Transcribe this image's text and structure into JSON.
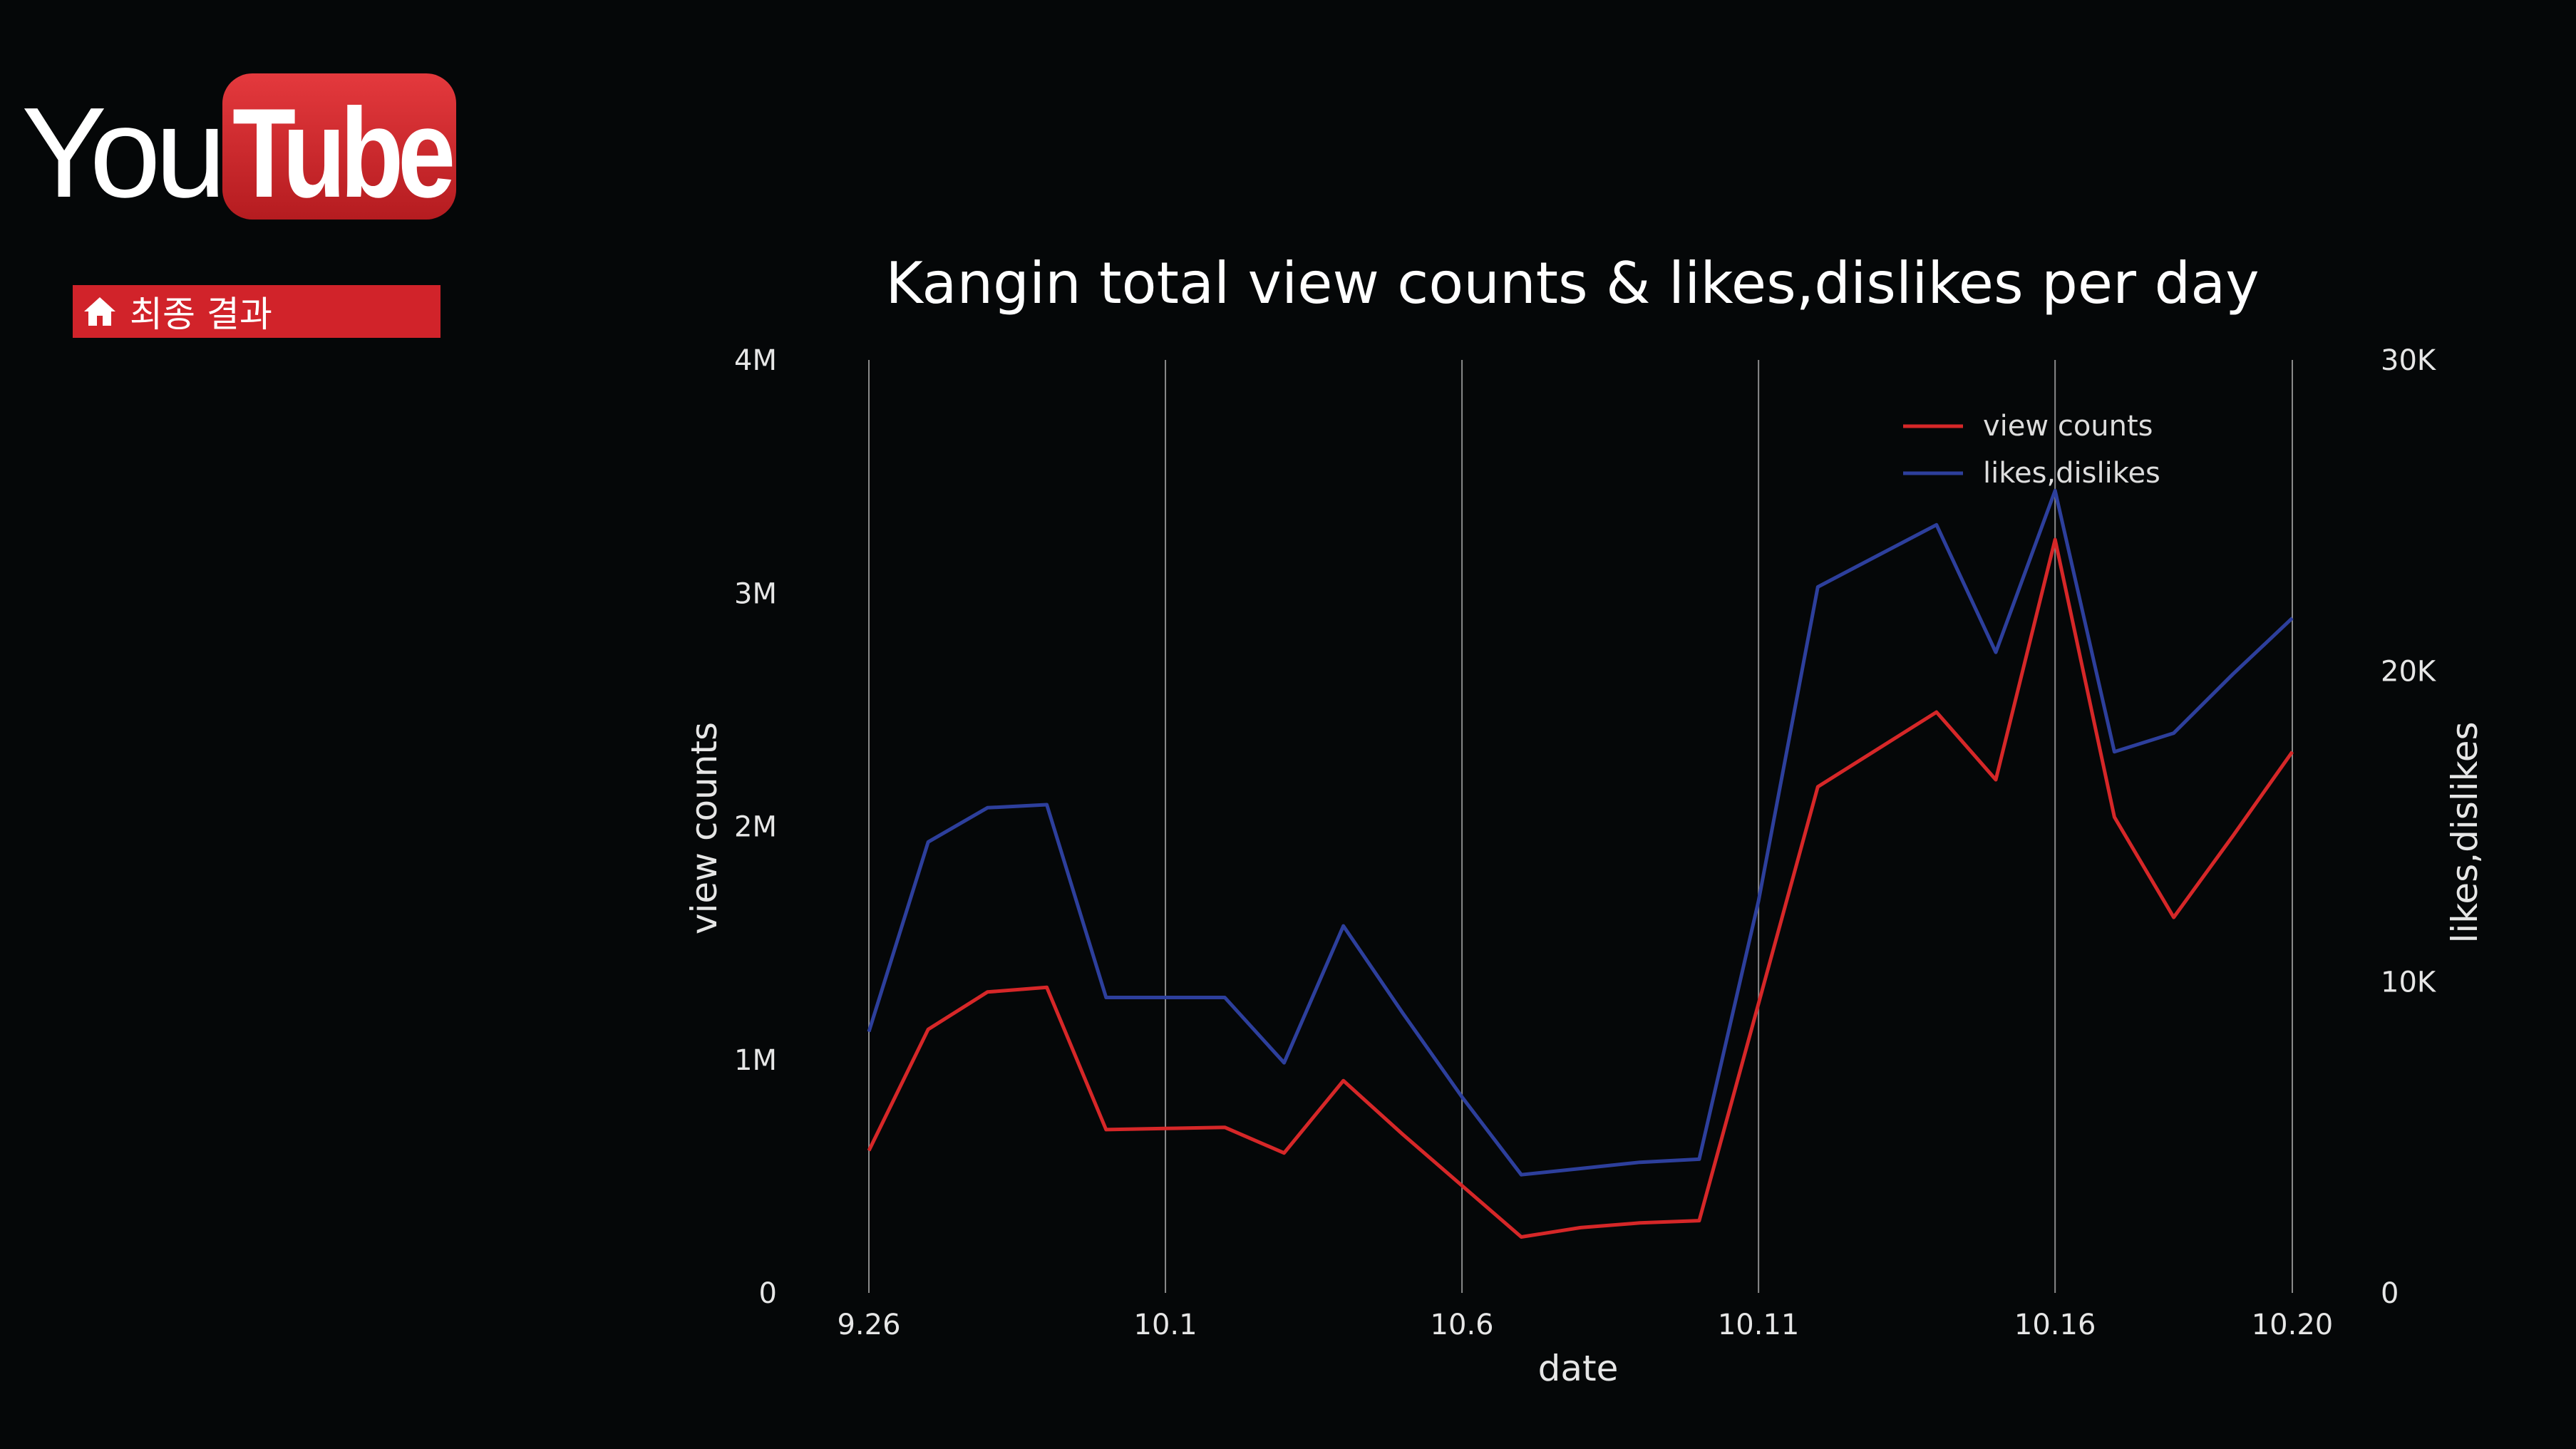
{
  "logo": {
    "you": "You",
    "tube": "Tube"
  },
  "badge": {
    "icon": "home-icon",
    "label": "최종 결과"
  },
  "chart_data": {
    "type": "line",
    "title": "Kangin total view counts & likes,dislikes per day",
    "xlabel": "date",
    "ylabel_left": "view counts",
    "ylabel_right": "likes,dislikes",
    "x_ticks": [
      {
        "label": "9.26",
        "day": 0
      },
      {
        "label": "10.1",
        "day": 5
      },
      {
        "label": "10.6",
        "day": 10
      },
      {
        "label": "10.11",
        "day": 15
      },
      {
        "label": "10.16",
        "day": 20
      },
      {
        "label": "10.20",
        "day": 24
      }
    ],
    "y_left_ticks": [
      {
        "label": "0",
        "value": 0
      },
      {
        "label": "1M",
        "value": 1000000
      },
      {
        "label": "2M",
        "value": 2000000
      },
      {
        "label": "3M",
        "value": 3000000
      },
      {
        "label": "4M",
        "value": 4000000
      }
    ],
    "y_right_ticks": [
      {
        "label": "0",
        "value": 0
      },
      {
        "label": "10K",
        "value": 10000
      },
      {
        "label": "20K",
        "value": 20000
      },
      {
        "label": "30K",
        "value": 30000
      }
    ],
    "ylim_left": [
      0,
      4000000
    ],
    "ylim_right": [
      0,
      30000
    ],
    "xlim": [
      0,
      24
    ],
    "grid": "vertical",
    "legend_position": "top-right",
    "series": [
      {
        "name": "view counts",
        "axis": "left",
        "color": "#d62728",
        "points": [
          [
            0,
            610000
          ],
          [
            1,
            1130000
          ],
          [
            2,
            1290000
          ],
          [
            3,
            1310000
          ],
          [
            4,
            700000
          ],
          [
            5,
            705000
          ],
          [
            6,
            710000
          ],
          [
            7,
            600000
          ],
          [
            8,
            910000
          ],
          [
            9,
            680000
          ],
          [
            10,
            460000
          ],
          [
            11,
            240000
          ],
          [
            12,
            280000
          ],
          [
            13,
            300000
          ],
          [
            14,
            310000
          ],
          [
            15,
            1240000
          ],
          [
            16,
            2170000
          ],
          [
            17,
            2330000
          ],
          [
            18,
            2490000
          ],
          [
            19,
            2200000
          ],
          [
            20,
            3230000
          ],
          [
            21,
            2040000
          ],
          [
            22,
            1610000
          ],
          [
            23,
            1960000
          ],
          [
            24,
            2320000
          ]
        ]
      },
      {
        "name": "likes,dislikes",
        "axis": "right",
        "color": "#2d3f9c",
        "points": [
          [
            0,
            8400
          ],
          [
            1,
            14500
          ],
          [
            2,
            15600
          ],
          [
            3,
            15700
          ],
          [
            4,
            9500
          ],
          [
            5,
            9500
          ],
          [
            6,
            9500
          ],
          [
            7,
            7400
          ],
          [
            8,
            11800
          ],
          [
            9,
            9000
          ],
          [
            10,
            6300
          ],
          [
            11,
            3800
          ],
          [
            12,
            4000
          ],
          [
            13,
            4200
          ],
          [
            14,
            4300
          ],
          [
            15,
            12600
          ],
          [
            16,
            22700
          ],
          [
            17,
            23700
          ],
          [
            18,
            24700
          ],
          [
            19,
            20600
          ],
          [
            20,
            25800
          ],
          [
            21,
            17400
          ],
          [
            22,
            18000
          ],
          [
            23,
            19900
          ],
          [
            24,
            21700
          ]
        ]
      }
    ]
  }
}
